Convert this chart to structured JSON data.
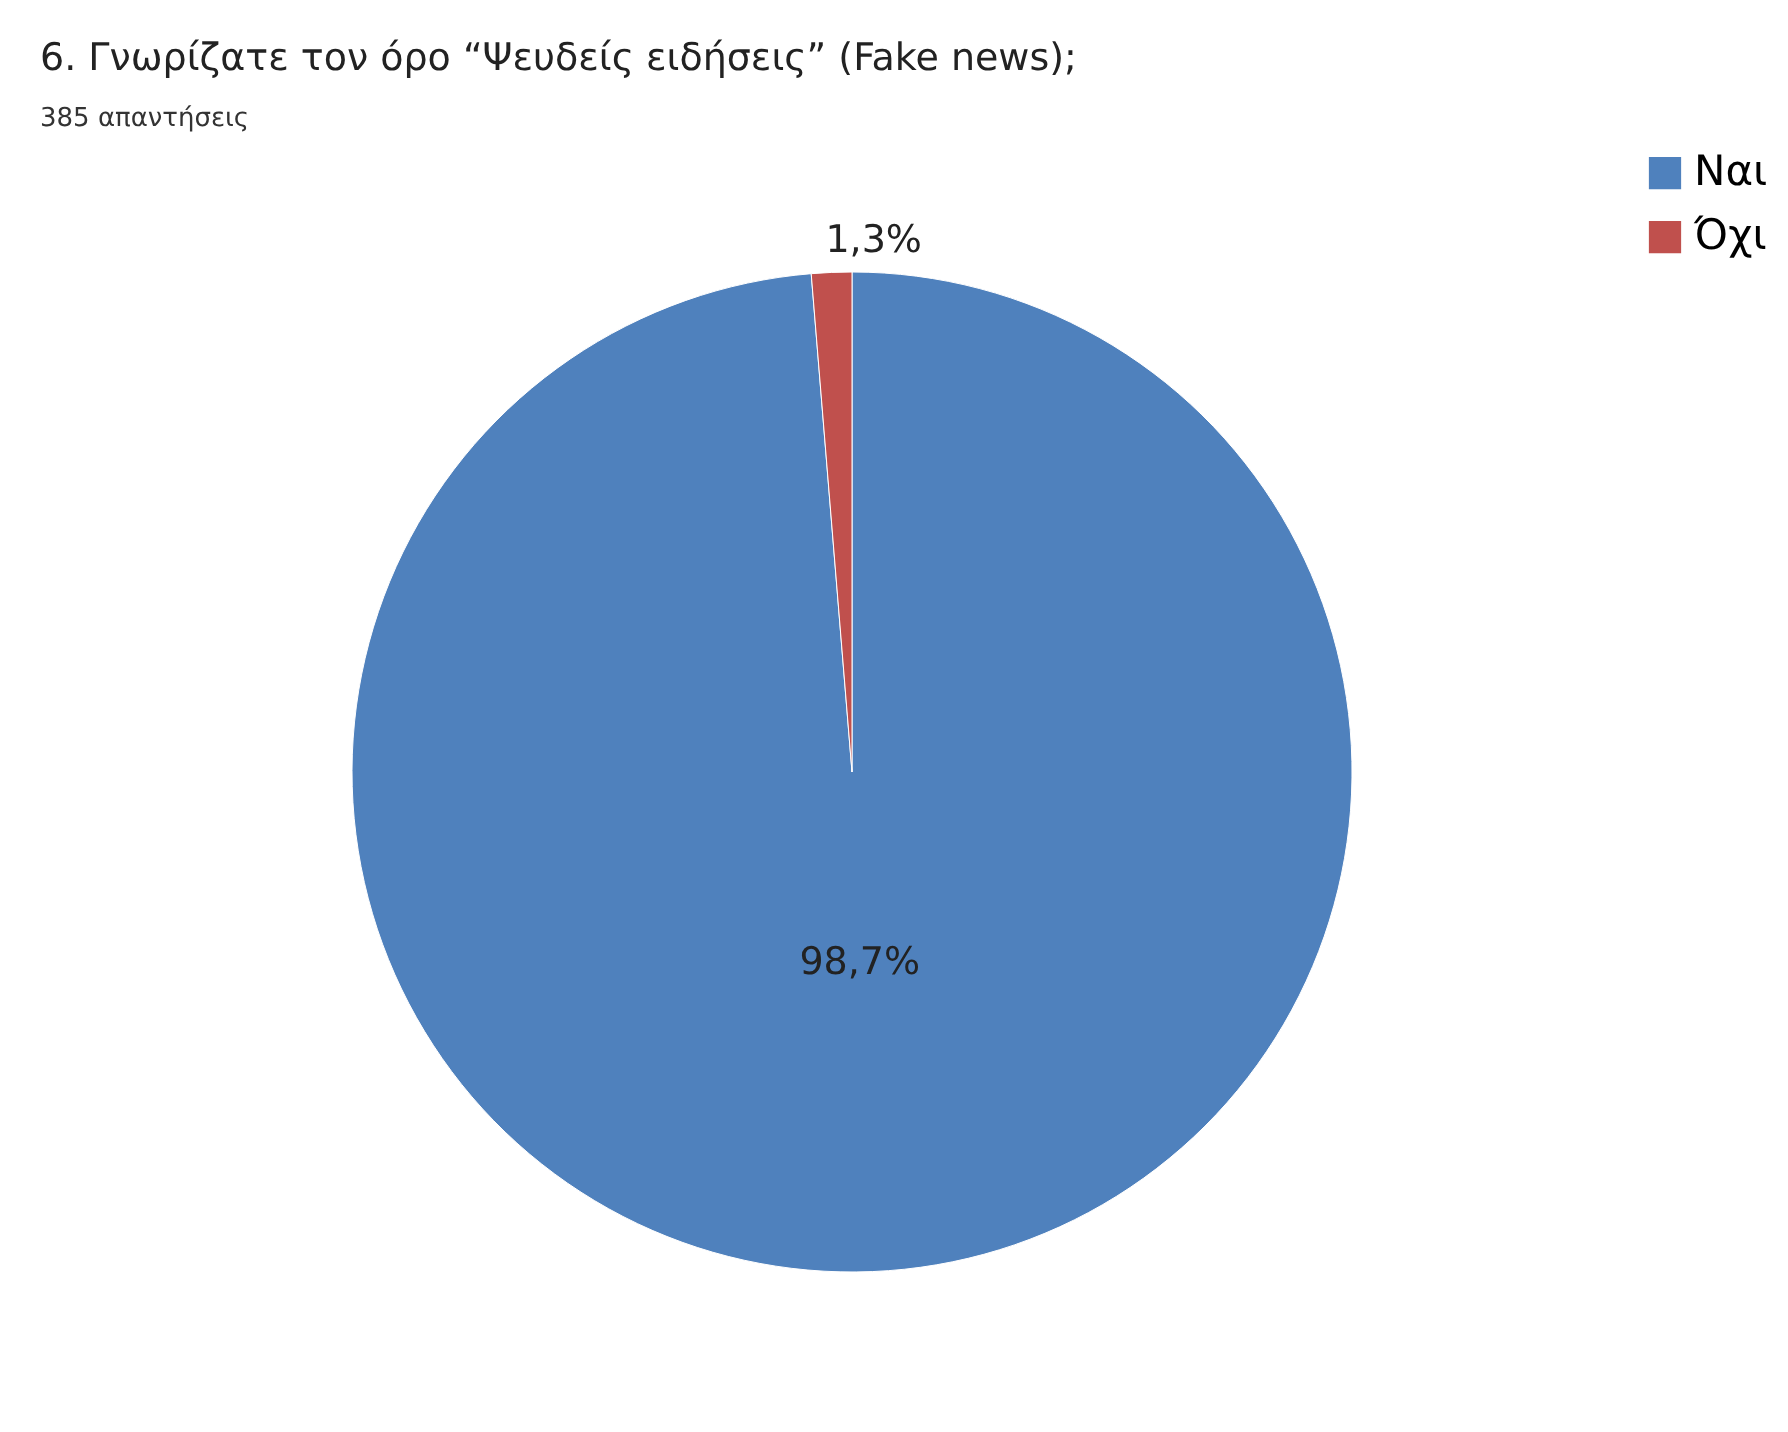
{
  "chart_data": {
    "type": "pie",
    "title": "6.   Γνωρίζατε τον όρο “Ψευδείς ειδήσεις” (Fake news);",
    "subtitle": "385 απαντήσεις",
    "categories": [
      "Ναι",
      "Όχι"
    ],
    "values": [
      98.7,
      1.3
    ],
    "colors": [
      "#4f81bd",
      "#c0504d"
    ],
    "value_labels": [
      "98,7%",
      "1,3%"
    ],
    "legend": "right"
  }
}
